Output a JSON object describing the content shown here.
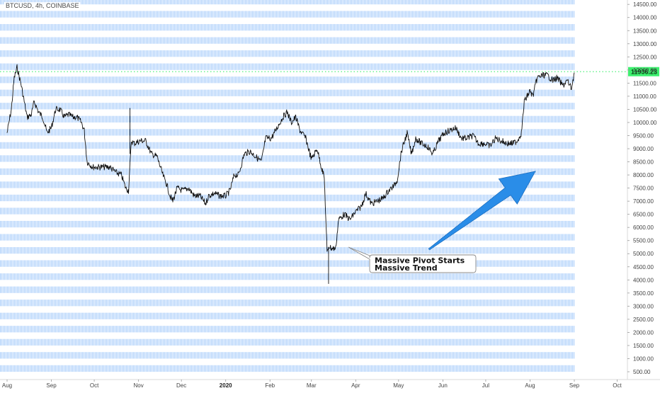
{
  "header": {
    "symbol": "BTCUSD, 4h, COINBASE"
  },
  "current_price": {
    "value": 11936.23,
    "label": "11936.23",
    "color": "#3cf06e"
  },
  "annotation": {
    "line1": "Massive Pivot Starts",
    "line2": "Massive Trend"
  },
  "colors": {
    "band": "#a9cdfb",
    "arrow": "#2a8de8",
    "line": "#111111",
    "axis_text": "#444444"
  },
  "chart_data": {
    "type": "line",
    "title": "",
    "xlabel": "",
    "ylabel": "",
    "grid": false,
    "ylim": [
      250,
      14750
    ],
    "y_ticks": [
      500,
      1000,
      1500,
      2000,
      2500,
      3000,
      3500,
      4000,
      4500,
      5000,
      5500,
      6000,
      6500,
      7000,
      7500,
      8000,
      8500,
      9000,
      9500,
      10000,
      10500,
      11000,
      11500,
      12000,
      12500,
      13000,
      13500,
      14000,
      14500
    ],
    "y_tick_labels": [
      "500.00",
      "1000.00",
      "1500.00",
      "2000.00",
      "2500.00",
      "3000.00",
      "3500.00",
      "4000.00",
      "4500.00",
      "5000.00",
      "5500.00",
      "6000.00",
      "6500.00",
      "7000.00",
      "7500.00",
      "8000.00",
      "8500.00",
      "9000.00",
      "9500.00",
      "10000.00",
      "10500.00",
      "11000.00",
      "11500.00",
      "12000.00",
      "12500.00",
      "13000.00",
      "13500.00",
      "14000.00",
      "14500.00"
    ],
    "x_ticks": [
      {
        "label": "Aug",
        "date": "2019-08-01"
      },
      {
        "label": "Sep",
        "date": "2019-09-01"
      },
      {
        "label": "Oct",
        "date": "2019-10-01"
      },
      {
        "label": "Nov",
        "date": "2019-11-01"
      },
      {
        "label": "Dec",
        "date": "2019-12-01"
      },
      {
        "label": "2020",
        "date": "2020-01-01",
        "bold": true
      },
      {
        "label": "Feb",
        "date": "2020-02-01"
      },
      {
        "label": "Mar",
        "date": "2020-03-01"
      },
      {
        "label": "Apr",
        "date": "2020-04-01"
      },
      {
        "label": "May",
        "date": "2020-05-01"
      },
      {
        "label": "Jun",
        "date": "2020-06-01"
      },
      {
        "label": "Jul",
        "date": "2020-07-01"
      },
      {
        "label": "Aug",
        "date": "2020-08-01"
      },
      {
        "label": "Sep",
        "date": "2020-09-01"
      },
      {
        "label": "Oct",
        "date": "2020-10-01"
      }
    ],
    "series": [
      {
        "x": [
          "2019-08-01",
          "2019-08-04",
          "2019-08-06",
          "2019-08-08",
          "2019-08-11",
          "2019-08-15",
          "2019-08-18",
          "2019-08-20",
          "2019-08-23",
          "2019-08-26",
          "2019-08-29",
          "2019-09-01",
          "2019-09-04",
          "2019-09-07",
          "2019-09-10",
          "2019-09-13",
          "2019-09-16",
          "2019-09-19",
          "2019-09-22",
          "2019-09-24",
          "2019-09-26",
          "2019-09-30",
          "2019-10-04",
          "2019-10-08",
          "2019-10-12",
          "2019-10-16",
          "2019-10-20",
          "2019-10-23",
          "2019-10-25",
          "2019-10-27",
          "2019-10-29",
          "2019-11-02",
          "2019-11-06",
          "2019-11-10",
          "2019-11-14",
          "2019-11-18",
          "2019-11-21",
          "2019-11-23",
          "2019-11-25",
          "2019-11-28",
          "2019-12-02",
          "2019-12-06",
          "2019-12-10",
          "2019-12-14",
          "2019-12-18",
          "2019-12-20",
          "2019-12-24",
          "2019-12-28",
          "2020-01-01",
          "2020-01-04",
          "2020-01-07",
          "2020-01-10",
          "2020-01-14",
          "2020-01-18",
          "2020-01-22",
          "2020-01-26",
          "2020-01-29",
          "2020-02-02",
          "2020-02-06",
          "2020-02-10",
          "2020-02-13",
          "2020-02-16",
          "2020-02-19",
          "2020-02-22",
          "2020-02-26",
          "2020-03-01",
          "2020-03-05",
          "2020-03-08",
          "2020-03-10",
          "2020-03-12",
          "2020-03-13",
          "2020-03-15",
          "2020-03-18",
          "2020-03-20",
          "2020-03-24",
          "2020-03-28",
          "2020-04-01",
          "2020-04-05",
          "2020-04-08",
          "2020-04-12",
          "2020-04-16",
          "2020-04-20",
          "2020-04-24",
          "2020-04-28",
          "2020-04-30",
          "2020-05-03",
          "2020-05-07",
          "2020-05-10",
          "2020-05-13",
          "2020-05-17",
          "2020-05-21",
          "2020-05-25",
          "2020-05-29",
          "2020-06-02",
          "2020-06-06",
          "2020-06-10",
          "2020-06-14",
          "2020-06-18",
          "2020-06-22",
          "2020-06-26",
          "2020-06-30",
          "2020-07-04",
          "2020-07-08",
          "2020-07-12",
          "2020-07-16",
          "2020-07-20",
          "2020-07-23",
          "2020-07-26",
          "2020-07-28",
          "2020-08-01",
          "2020-08-03",
          "2020-08-06",
          "2020-08-10",
          "2020-08-13",
          "2020-08-17",
          "2020-08-20",
          "2020-08-24",
          "2020-08-27",
          "2020-08-30",
          "2020-09-01"
        ],
        "y": [
          9600,
          10500,
          11700,
          12100,
          11400,
          10200,
          10300,
          10800,
          10400,
          10200,
          9600,
          9800,
          10500,
          10500,
          10200,
          10300,
          10200,
          10200,
          10000,
          9700,
          8500,
          8300,
          8300,
          8300,
          8300,
          8100,
          8000,
          7500,
          7400,
          9300,
          9200,
          9300,
          9300,
          8800,
          8700,
          8000,
          7600,
          7200,
          7000,
          7500,
          7400,
          7500,
          7200,
          7200,
          6900,
          7200,
          7300,
          7200,
          7200,
          7400,
          8000,
          8000,
          8800,
          8900,
          8700,
          8500,
          9400,
          9400,
          9800,
          10200,
          10400,
          10000,
          10200,
          9700,
          9400,
          8600,
          9000,
          8300,
          7900,
          5000,
          5300,
          5200,
          5200,
          6300,
          6500,
          6300,
          6600,
          6800,
          7300,
          6900,
          7000,
          7100,
          7400,
          7600,
          7800,
          8900,
          9600,
          8800,
          9400,
          9200,
          9100,
          8800,
          9300,
          9600,
          9700,
          9800,
          9400,
          9400,
          9500,
          9200,
          9200,
          9100,
          9400,
          9300,
          9200,
          9200,
          9300,
          9600,
          10800,
          11200,
          11000,
          11700,
          11800,
          11800,
          11600,
          11700,
          11400,
          11600,
          11300,
          11900
        ]
      }
    ]
  }
}
